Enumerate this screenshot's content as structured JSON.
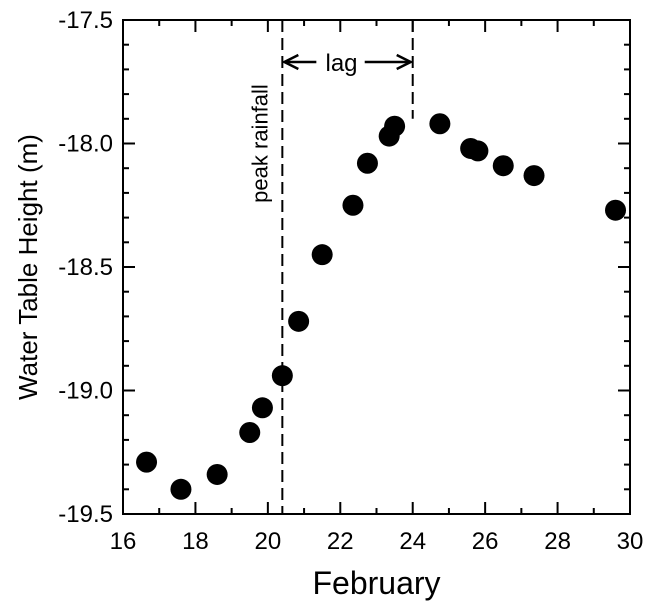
{
  "chart_data": {
    "type": "scatter",
    "title": "",
    "xlabel": "February",
    "ylabel": "Water Table  Height (m)",
    "xlim": [
      16,
      30
    ],
    "ylim": [
      -19.5,
      -17.5
    ],
    "x_ticks": [
      "16",
      "18",
      "20",
      "22",
      "24",
      "26",
      "28",
      "30"
    ],
    "y_ticks": [
      "-17.5",
      "-18.0",
      "-18.5",
      "-19.0",
      "-19.5"
    ],
    "grid": false,
    "series": [
      {
        "x": [
          16.65,
          17.6,
          18.6,
          19.5,
          19.85,
          20.4,
          20.85,
          21.5,
          22.35,
          22.75,
          23.35,
          23.5,
          24.75,
          25.6,
          25.8,
          26.5,
          27.35,
          29.6
        ],
        "y": [
          -19.29,
          -19.4,
          -19.34,
          -19.17,
          -19.07,
          -18.94,
          -18.72,
          -18.45,
          -18.25,
          -18.08,
          -17.97,
          -17.93,
          -17.92,
          -18.02,
          -18.03,
          -18.09,
          -18.13,
          -18.27
        ]
      }
    ],
    "annotations": {
      "peak_rainfall": {
        "x": 20.4,
        "label": "peak rainfall"
      },
      "lag": {
        "x_start": 20.4,
        "x_end": 24.0,
        "label": "lag"
      }
    }
  }
}
